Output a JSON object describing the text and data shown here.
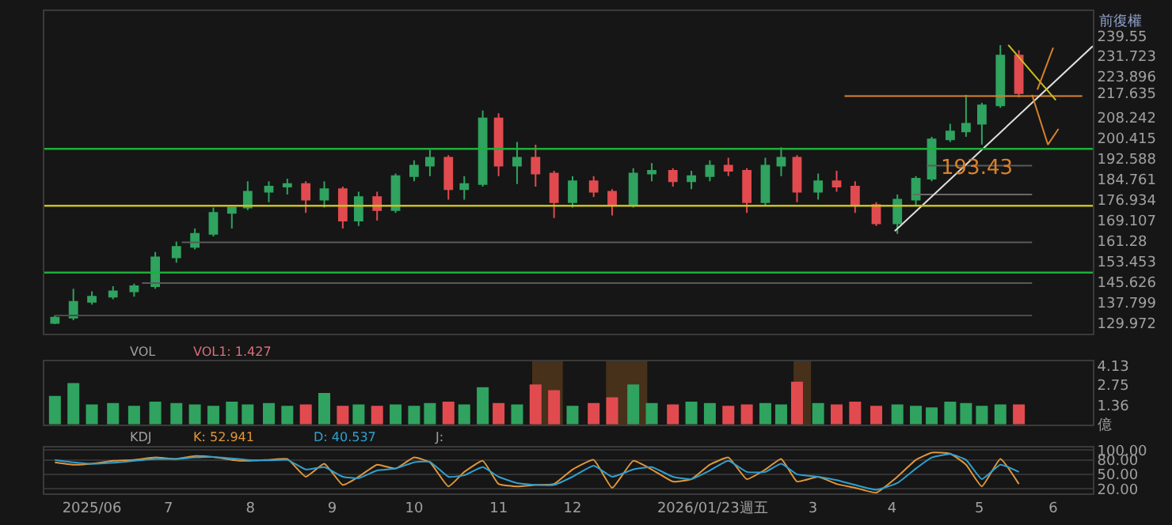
{
  "chart_data": [
    {
      "type": "candlestick",
      "tick_labels": "y",
      "x": [
        "2025-05-19",
        "2025-05-26",
        "2025-06-02",
        "2025-06-10",
        "2025-06-18",
        "2025-06-26",
        "2025-07-04",
        "2025-07-11",
        "2025-07-18",
        "2025-07-25",
        "2025-07-31",
        "2025-08-08",
        "2025-08-15",
        "2025-08-22",
        "2025-08-29",
        "2025-09-05",
        "2025-09-11",
        "2025-09-18",
        "2025-09-25",
        "2025-10-02",
        "2025-10-08",
        "2025-10-15",
        "2025-10-21",
        "2025-10-28",
        "2025-11-03",
        "2025-11-10",
        "2025-11-17",
        "2025-11-24",
        "2025-12-01",
        "2025-12-09",
        "2025-12-16",
        "2025-12-24",
        "2025-12-31",
        "2026-01-08",
        "2026-01-15",
        "2026-01-22",
        "2026-01-29",
        "2026-02-05",
        "2026-02-12",
        "2026-02-18",
        "2026-02-24",
        "2026-03-04",
        "2026-03-11",
        "2026-03-18",
        "2026-03-26",
        "2026-04-03",
        "2026-04-10",
        "2026-04-16",
        "2026-04-23",
        "2026-04-29",
        "2026-05-05",
        "2026-05-12",
        "2026-05-19"
      ],
      "ohlc": [
        [
          130,
          133,
          129.5,
          132
        ],
        [
          132,
          143,
          131,
          138
        ],
        [
          138,
          142,
          137,
          140
        ],
        [
          140,
          144,
          139,
          142
        ],
        [
          142,
          145,
          140,
          144
        ],
        [
          144,
          157,
          143,
          155
        ],
        [
          155,
          161,
          153,
          159
        ],
        [
          159,
          166,
          158,
          164
        ],
        [
          164,
          174,
          163,
          172
        ],
        [
          172,
          174,
          166,
          174
        ],
        [
          174,
          184,
          173,
          180
        ],
        [
          180,
          184,
          176,
          182
        ],
        [
          182,
          185,
          179,
          183
        ],
        [
          183,
          184,
          172,
          177
        ],
        [
          177,
          184,
          174,
          181
        ],
        [
          181,
          182,
          166,
          169
        ],
        [
          169,
          180,
          167,
          178
        ],
        [
          178,
          180,
          169,
          173
        ],
        [
          173,
          187,
          172,
          186
        ],
        [
          186,
          192,
          184,
          190
        ],
        [
          190,
          196,
          186,
          193
        ],
        [
          193,
          194,
          177,
          181
        ],
        [
          181,
          186,
          177,
          183
        ],
        [
          183,
          211,
          182,
          208
        ],
        [
          208,
          210,
          186,
          190
        ],
        [
          190,
          199,
          183,
          193
        ],
        [
          193,
          198,
          182,
          187
        ],
        [
          187,
          188,
          170,
          176
        ],
        [
          176,
          186,
          174,
          184
        ],
        [
          184,
          186,
          178,
          180
        ],
        [
          180,
          181,
          171,
          175
        ],
        [
          175,
          189,
          174,
          187
        ],
        [
          187,
          191,
          184,
          188
        ],
        [
          188,
          189,
          182,
          184
        ],
        [
          184,
          188,
          181,
          186
        ],
        [
          186,
          192,
          184,
          190
        ],
        [
          190,
          193,
          186,
          188
        ],
        [
          188,
          189,
          172,
          176
        ],
        [
          176,
          193,
          175,
          190
        ],
        [
          190,
          197,
          186,
          193
        ],
        [
          193,
          194,
          176,
          180
        ],
        [
          180,
          187,
          177,
          184
        ],
        [
          184,
          188,
          180,
          182
        ],
        [
          182,
          184,
          172,
          175
        ],
        [
          175,
          176,
          167,
          168
        ],
        [
          168,
          179,
          164,
          177
        ],
        [
          177,
          186,
          175,
          185
        ],
        [
          185,
          201,
          184,
          200
        ],
        [
          200,
          206,
          199,
          203
        ],
        [
          203,
          217,
          201,
          206
        ],
        [
          206,
          214,
          198,
          213
        ],
        [
          213,
          236,
          212,
          232
        ],
        [
          232,
          234,
          216,
          217.635
        ]
      ],
      "colors": [
        "#2fa35f",
        "#2fa35f",
        "#2fa35f",
        "#2fa35f",
        "#2fa35f",
        "#2fa35f",
        "#2fa35f",
        "#2fa35f",
        "#2fa35f",
        "#2fa35f",
        "#2fa35f",
        "#2fa35f",
        "#2fa35f",
        "#e14b4f",
        "#2fa35f",
        "#e14b4f",
        "#2fa35f",
        "#e14b4f",
        "#2fa35f",
        "#2fa35f",
        "#2fa35f",
        "#e14b4f",
        "#2fa35f",
        "#2fa35f",
        "#e14b4f",
        "#2fa35f",
        "#e14b4f",
        "#e14b4f",
        "#2fa35f",
        "#e14b4f",
        "#e14b4f",
        "#2fa35f",
        "#2fa35f",
        "#e14b4f",
        "#2fa35f",
        "#2fa35f",
        "#e14b4f",
        "#e14b4f",
        "#2fa35f",
        "#2fa35f",
        "#e14b4f",
        "#2fa35f",
        "#e14b4f",
        "#e14b4f",
        "#e14b4f",
        "#2fa35f",
        "#2fa35f",
        "#2fa35f",
        "#2fa35f",
        "#2fa35f",
        "#2fa35f",
        "#2fa35f",
        "#e14b4f"
      ],
      "xlim": [
        "2025-05-15",
        "2026-06-16"
      ],
      "ylim": [
        126,
        249
      ],
      "yticks": [
        129.972,
        137.799,
        145.626,
        153.453,
        161.28,
        169.107,
        176.934,
        184.761,
        192.588,
        200.415,
        208.242,
        217.635,
        223.896,
        231.723,
        239.55
      ],
      "ref_lines": [
        {
          "axis": "y",
          "value": 196.4,
          "color": "#1fae3a"
        },
        {
          "axis": "y",
          "value": 174.7,
          "color": "#c8c020"
        },
        {
          "axis": "y",
          "value": 149.2,
          "color": "#1fae3a"
        }
      ],
      "series": [
        {
          "type": "line",
          "color": "#5a5a5a",
          "x": [
            "2025-07-06",
            "2026-05-24"
          ],
          "values": [
            160.7,
            160.7
          ]
        },
        {
          "type": "line",
          "color": "#5a5a5a",
          "x": [
            "2025-06-21",
            "2026-05-24"
          ],
          "values": [
            145.2,
            145.2
          ]
        },
        {
          "type": "line",
          "color": "#4a4a4a",
          "x": [
            "2025-05-19",
            "2026-05-24"
          ],
          "values": [
            132.8,
            132.8
          ]
        },
        {
          "type": "line",
          "color": "#5a5a5a",
          "x": [
            "2026-04-14",
            "2026-05-24"
          ],
          "values": [
            190.0,
            190.0
          ]
        },
        {
          "type": "line",
          "color": "#6a6a6a",
          "x": [
            "2026-04-09",
            "2026-05-24"
          ],
          "values": [
            179.0,
            179.0
          ]
        },
        {
          "type": "line",
          "color": "#d9822b",
          "x": [
            "2026-03-14",
            "2026-06-12"
          ],
          "values": [
            216.5,
            216.5
          ]
        },
        {
          "type": "line",
          "color": "#e0e0e0",
          "x": [
            "2026-04-02",
            "2026-06-16"
          ],
          "values": [
            165,
            235.6
          ]
        },
        {
          "type": "line",
          "color": "#c8c020",
          "x": [
            "2026-05-15",
            "2026-06-02"
          ],
          "values": [
            236,
            215
          ]
        },
        {
          "type": "line",
          "color": "#d9822b",
          "x": [
            "2026-05-24",
            "2026-05-30",
            "2026-06-03"
          ],
          "values": [
            217,
            198,
            204
          ]
        },
        {
          "type": "line",
          "color": "#d9822b",
          "x": [
            "2026-05-26",
            "2026-06-01"
          ],
          "values": [
            219,
            235
          ]
        }
      ],
      "annotations": [
        "前復權",
        {
          "text": "193.43",
          "x": "2026-05-03",
          "y": 194
        }
      ]
    },
    {
      "type": "bar",
      "tick_labels": "y",
      "x": [
        "2025-05-19",
        "2025-05-26",
        "2025-06-02",
        "2025-06-10",
        "2025-06-18",
        "2025-06-26",
        "2025-07-04",
        "2025-07-11",
        "2025-07-18",
        "2025-07-25",
        "2025-07-31",
        "2025-08-08",
        "2025-08-15",
        "2025-08-22",
        "2025-08-29",
        "2025-09-05",
        "2025-09-11",
        "2025-09-18",
        "2025-09-25",
        "2025-10-02",
        "2025-10-08",
        "2025-10-15",
        "2025-10-21",
        "2025-10-28",
        "2025-11-03",
        "2025-11-10",
        "2025-11-17",
        "2025-11-24",
        "2025-12-01",
        "2025-12-09",
        "2025-12-16",
        "2025-12-24",
        "2025-12-31",
        "2026-01-08",
        "2026-01-15",
        "2026-01-22",
        "2026-01-29",
        "2026-02-05",
        "2026-02-12",
        "2026-02-18",
        "2026-02-24",
        "2026-03-04",
        "2026-03-11",
        "2026-03-18",
        "2026-03-26",
        "2026-04-03",
        "2026-04-10",
        "2026-04-16",
        "2026-04-23",
        "2026-04-29",
        "2026-05-05",
        "2026-05-12",
        "2026-05-19"
      ],
      "values": [
        2.0,
        2.9,
        1.4,
        1.5,
        1.3,
        1.6,
        1.5,
        1.4,
        1.3,
        1.6,
        1.4,
        1.5,
        1.3,
        1.4,
        2.2,
        1.3,
        1.4,
        1.3,
        1.4,
        1.3,
        1.5,
        1.6,
        1.4,
        2.6,
        1.5,
        1.4,
        2.8,
        2.4,
        1.3,
        1.5,
        1.9,
        2.8,
        1.5,
        1.4,
        1.6,
        1.5,
        1.3,
        1.4,
        1.5,
        1.4,
        3.0,
        1.5,
        1.4,
        1.6,
        1.3,
        1.4,
        1.3,
        1.2,
        1.6,
        1.5,
        1.3,
        1.4,
        1.4
      ],
      "colors": [
        "#2fa35f",
        "#2fa35f",
        "#2fa35f",
        "#2fa35f",
        "#2fa35f",
        "#2fa35f",
        "#2fa35f",
        "#2fa35f",
        "#2fa35f",
        "#2fa35f",
        "#2fa35f",
        "#2fa35f",
        "#2fa35f",
        "#e14b4f",
        "#2fa35f",
        "#e14b4f",
        "#2fa35f",
        "#e14b4f",
        "#2fa35f",
        "#2fa35f",
        "#2fa35f",
        "#e14b4f",
        "#2fa35f",
        "#2fa35f",
        "#e14b4f",
        "#2fa35f",
        "#e14b4f",
        "#e14b4f",
        "#2fa35f",
        "#e14b4f",
        "#e14b4f",
        "#2fa35f",
        "#2fa35f",
        "#e14b4f",
        "#2fa35f",
        "#2fa35f",
        "#e14b4f",
        "#e14b4f",
        "#2fa35f",
        "#2fa35f",
        "#e14b4f",
        "#2fa35f",
        "#e14b4f",
        "#e14b4f",
        "#e14b4f",
        "#2fa35f",
        "#2fa35f",
        "#2fa35f",
        "#2fa35f",
        "#2fa35f",
        "#2fa35f",
        "#2fa35f",
        "#e14b4f"
      ],
      "xlim": [
        "2025-05-15",
        "2026-06-16"
      ],
      "ylim": [
        0,
        4.4
      ],
      "yticks": [
        {
          "value": 0,
          "label": "億"
        },
        1.36,
        2.75,
        4.13
      ],
      "bands": [
        {
          "axis": "x",
          "from": "2025-11-16",
          "to": "2025-11-27",
          "color": "#d9822b"
        },
        {
          "axis": "x",
          "from": "2025-12-14",
          "to": "2025-12-29",
          "color": "#d9822b"
        },
        {
          "axis": "x",
          "from": "2026-02-23",
          "to": "2026-03-01",
          "color": "#d9822b"
        }
      ],
      "annotations": [
        "VOL",
        "VOL1: 1.427"
      ]
    },
    {
      "type": "line",
      "grid": "y",
      "x": [
        "2025-05-19",
        "2025-05-26",
        "2025-06-02",
        "2025-06-10",
        "2025-06-18",
        "2025-06-26",
        "2025-07-04",
        "2025-07-11",
        "2025-07-18",
        "2025-07-25",
        "2025-07-31",
        "2025-08-08",
        "2025-08-15",
        "2025-08-22",
        "2025-08-29",
        "2025-09-05",
        "2025-09-11",
        "2025-09-18",
        "2025-09-25",
        "2025-10-02",
        "2025-10-08",
        "2025-10-15",
        "2025-10-21",
        "2025-10-28",
        "2025-11-03",
        "2025-11-10",
        "2025-11-17",
        "2025-11-24",
        "2025-12-01",
        "2025-12-09",
        "2025-12-16",
        "2025-12-24",
        "2025-12-31",
        "2026-01-08",
        "2026-01-15",
        "2026-01-22",
        "2026-01-29",
        "2026-02-05",
        "2026-02-12",
        "2026-02-18",
        "2026-02-24",
        "2026-03-04",
        "2026-03-11",
        "2026-03-18",
        "2026-03-26",
        "2026-04-03",
        "2026-04-10",
        "2026-04-16",
        "2026-04-23",
        "2026-04-29",
        "2026-05-05",
        "2026-05-12",
        "2026-05-19"
      ],
      "series": [
        {
          "color": "#e0963a",
          "values": [
            75,
            70,
            72,
            78,
            80,
            85,
            82,
            88,
            86,
            80,
            78,
            80,
            82,
            45,
            72,
            28,
            45,
            70,
            62,
            85,
            75,
            25,
            55,
            78,
            30,
            25,
            28,
            30,
            60,
            80,
            22,
            78,
            60,
            35,
            40,
            70,
            85,
            40,
            60,
            82,
            35,
            45,
            30,
            22,
            12,
            45,
            80,
            95,
            93,
            70,
            25,
            82,
            30
          ]
        },
        {
          "color": "#2fa0d0",
          "values": [
            80,
            75,
            72,
            74,
            78,
            82,
            82,
            85,
            86,
            83,
            80,
            79,
            80,
            60,
            65,
            45,
            42,
            58,
            62,
            75,
            76,
            45,
            48,
            65,
            45,
            32,
            28,
            28,
            45,
            68,
            45,
            60,
            65,
            45,
            40,
            58,
            78,
            55,
            55,
            72,
            50,
            45,
            38,
            28,
            18,
            32,
            62,
            85,
            92,
            80,
            40,
            70,
            55
          ]
        }
      ],
      "xlim": [
        "2025-05-15",
        "2026-06-16"
      ],
      "ylim": [
        10,
        105
      ],
      "yticks": [
        {
          "value": 20,
          "label": "20.00"
        },
        {
          "value": 50,
          "label": "50.00"
        },
        {
          "value": 80,
          "label": "80.00"
        },
        {
          "value": 100,
          "label": "100.00"
        }
      ],
      "xticks": [
        {
          "value": "2025-06-02",
          "label": "2025/06"
        },
        {
          "value": "2025-07-01",
          "label": "7"
        },
        {
          "value": "2025-08-01",
          "label": "8"
        },
        {
          "value": "2025-09-01",
          "label": "9"
        },
        {
          "value": "2025-10-02",
          "label": "10"
        },
        {
          "value": "2025-11-03",
          "label": "11"
        },
        {
          "value": "2025-12-01",
          "label": "12"
        },
        {
          "value": "2026-01-23",
          "label": "2026/01/23週五"
        },
        {
          "value": "2026-03-02",
          "label": "3"
        },
        {
          "value": "2026-04-01",
          "label": "4"
        },
        {
          "value": "2026-05-04",
          "label": "5"
        },
        {
          "value": "2026-06-01",
          "label": "6"
        }
      ],
      "annotations": [
        "KDJ",
        "K: 52.941",
        "D: 40.537",
        "J:"
      ]
    }
  ]
}
